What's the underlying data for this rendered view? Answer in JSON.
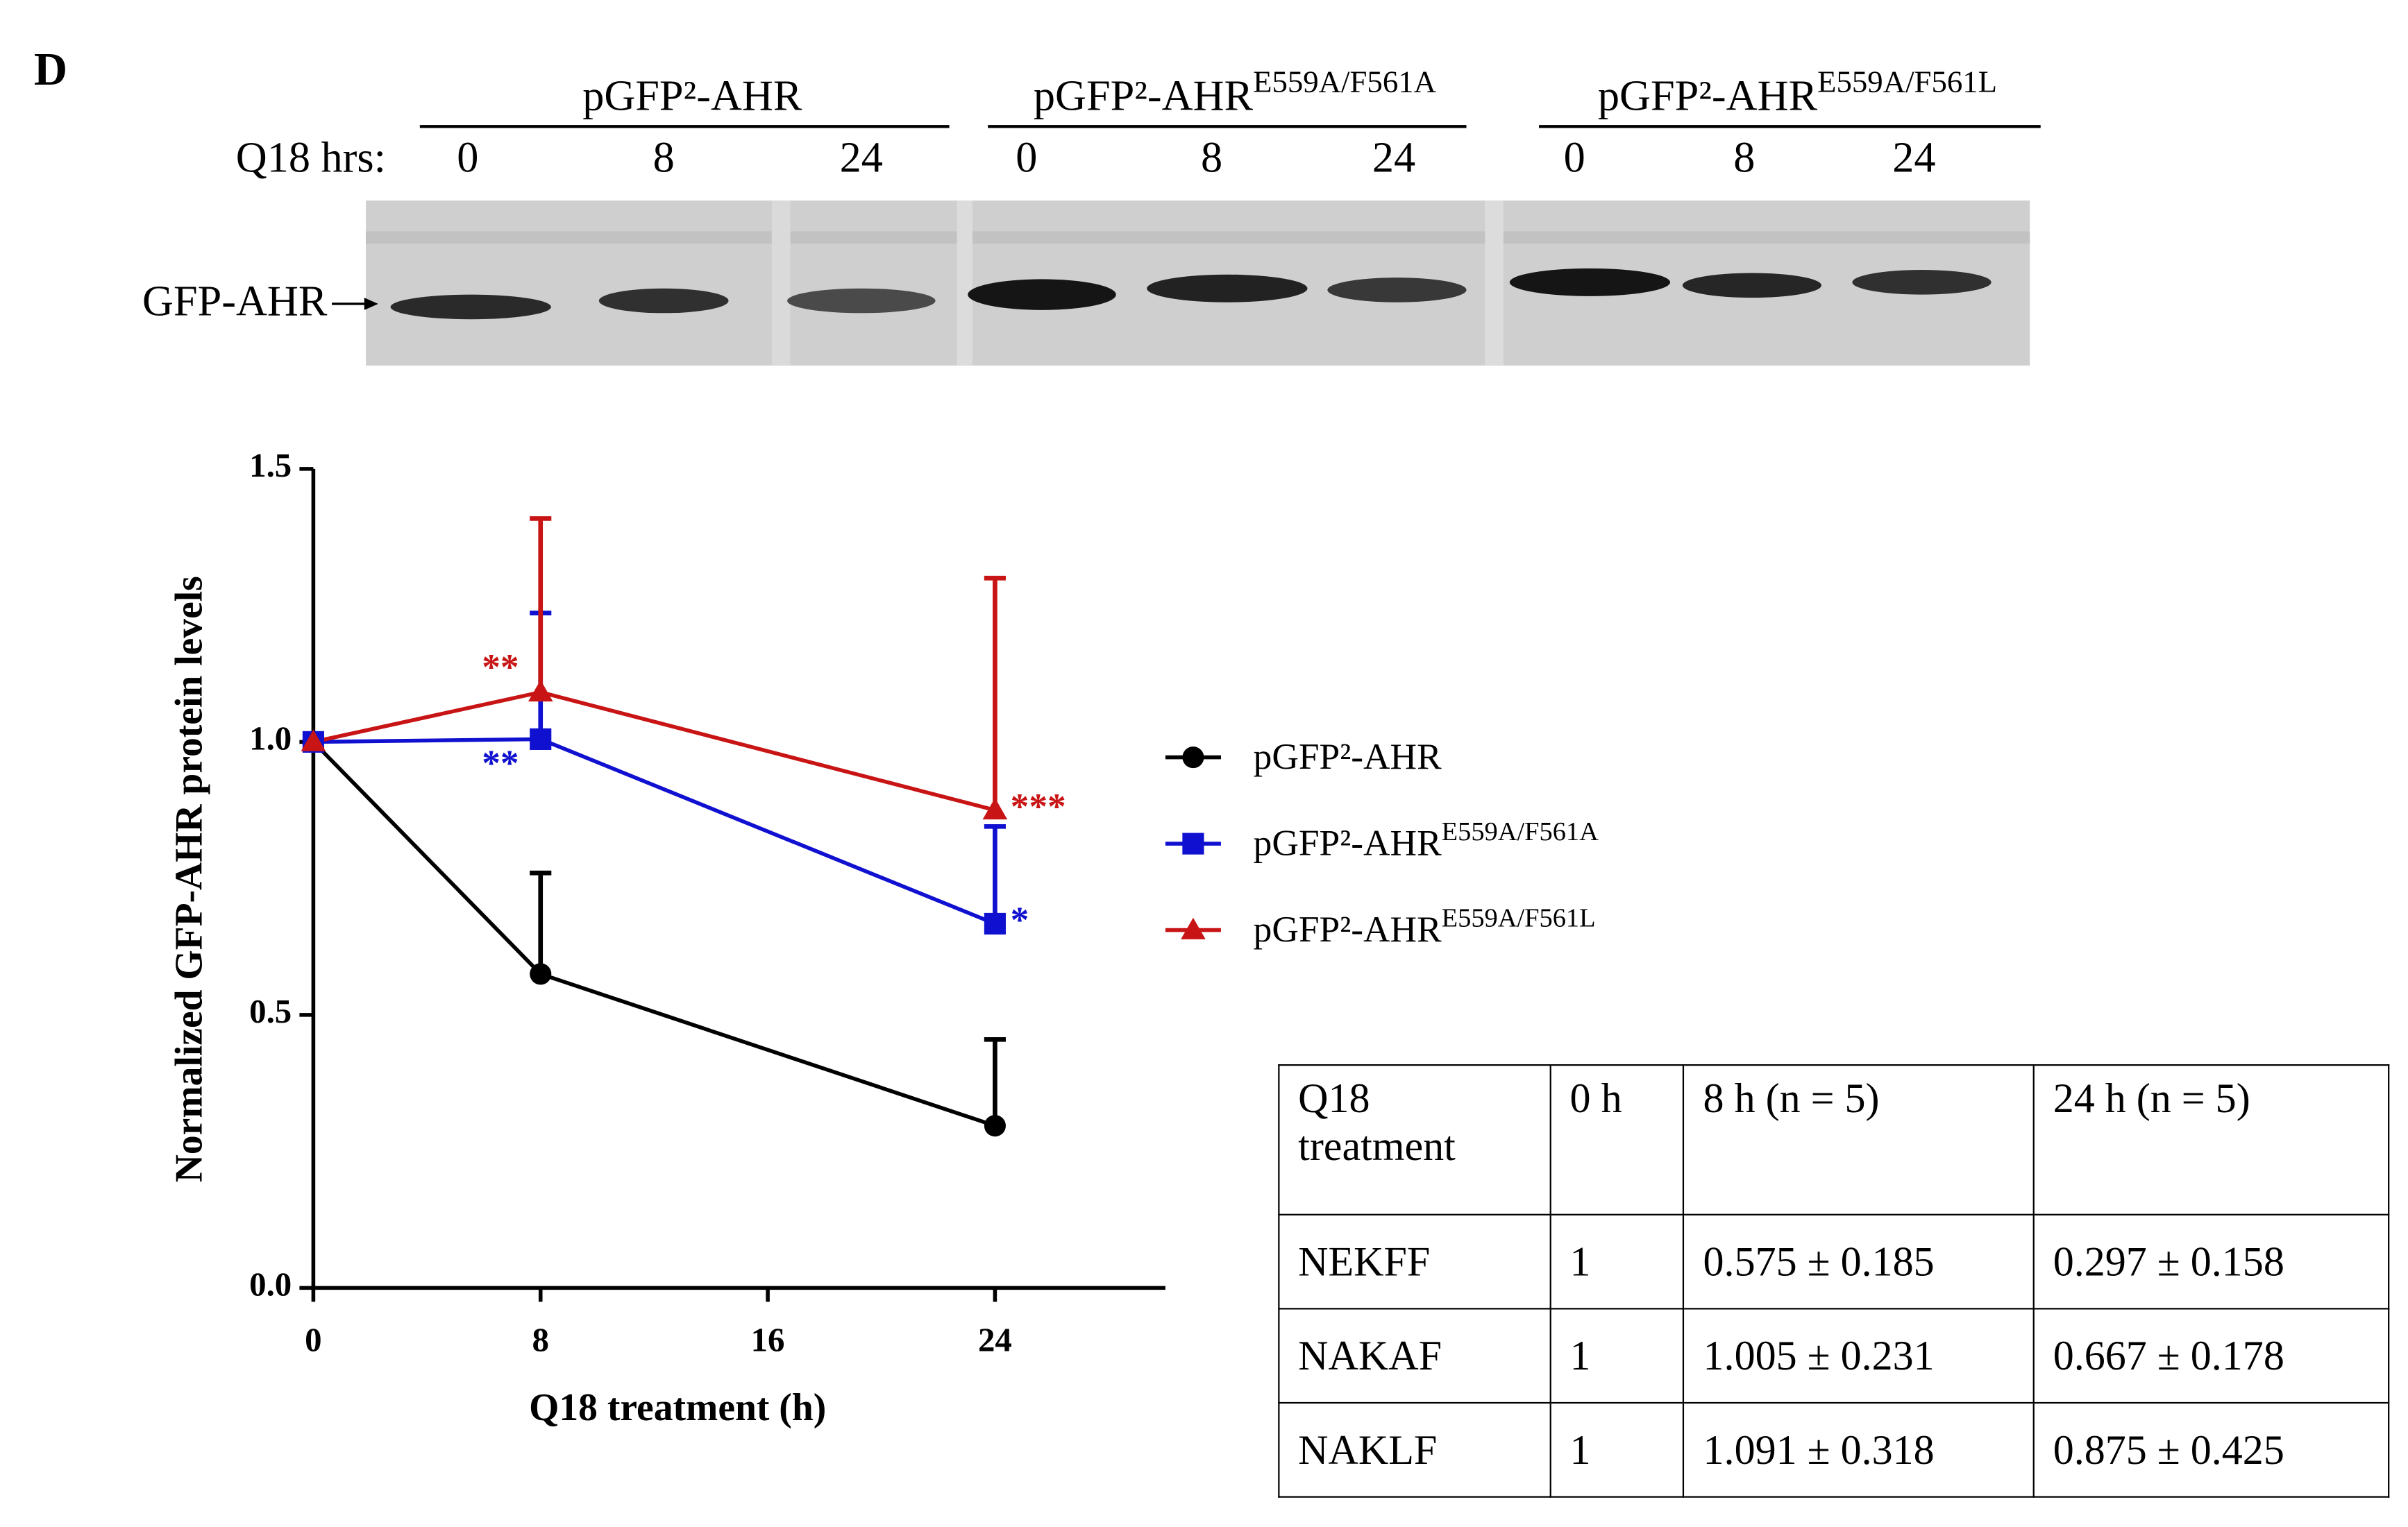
{
  "panel_label": "D",
  "blot": {
    "groups": [
      {
        "name": "pGFP²-AHR"
      },
      {
        "name": "pGFP²-AHR",
        "mutation": "E559A/F561A"
      },
      {
        "name": "pGFP²-AHR",
        "mutation": "E559A/F561L"
      }
    ],
    "row_label": "Q18 hrs:",
    "lanes": [
      0,
      8,
      24,
      0,
      8,
      24,
      0,
      8,
      24
    ],
    "band_label": "GFP-AHR"
  },
  "chart_data": {
    "type": "line",
    "x_label": "Q18 treatment (h)",
    "y_label": "Normalized GFP-AHR protein levels",
    "x": [
      0,
      8,
      24
    ],
    "xlim": [
      0,
      30
    ],
    "xticks": [
      0,
      8,
      16,
      24
    ],
    "ylim": [
      0,
      1.5
    ],
    "yticks": [
      {
        "value": 0,
        "label": "0.0"
      },
      0.5,
      {
        "value": 1,
        "label": "1.0"
      },
      1.5
    ],
    "legend": "right",
    "series": [
      {
        "name": "pGFP²-AHR",
        "color": "#000000",
        "marker": "circle",
        "values": [
          1,
          0.575,
          0.297
        ],
        "errors": [
          null,
          0.185,
          0.158
        ],
        "significance": [
          null,
          null,
          null
        ]
      },
      {
        "name": "pGFP²-AHR",
        "mutation": "E559A/F561A",
        "color": "#1010d0",
        "marker": "square",
        "values": [
          1,
          1.005,
          0.667
        ],
        "errors": [
          null,
          0.231,
          0.178
        ],
        "significance": [
          null,
          "**",
          "*"
        ]
      },
      {
        "name": "pGFP²-AHR",
        "mutation": "E559A/F561L",
        "color": "#c81414",
        "marker": "triangle",
        "values": [
          1,
          1.091,
          0.875
        ],
        "errors": [
          null,
          0.318,
          0.425
        ],
        "significance": [
          null,
          "**",
          "***"
        ]
      }
    ]
  },
  "table": {
    "header": [
      "Q18 treatment",
      "0 h",
      "8 h (n = 5)",
      "24 h (n = 5)"
    ],
    "rows": [
      [
        "NEKFF",
        "1",
        "0.575 ± 0.185",
        "0.297 ± 0.158"
      ],
      [
        "NAKAF",
        "1",
        "1.005 ± 0.231",
        "0.667 ± 0.178"
      ],
      [
        "NAKLF",
        "1",
        "1.091 ± 0.318",
        "0.875 ± 0.425"
      ]
    ]
  }
}
